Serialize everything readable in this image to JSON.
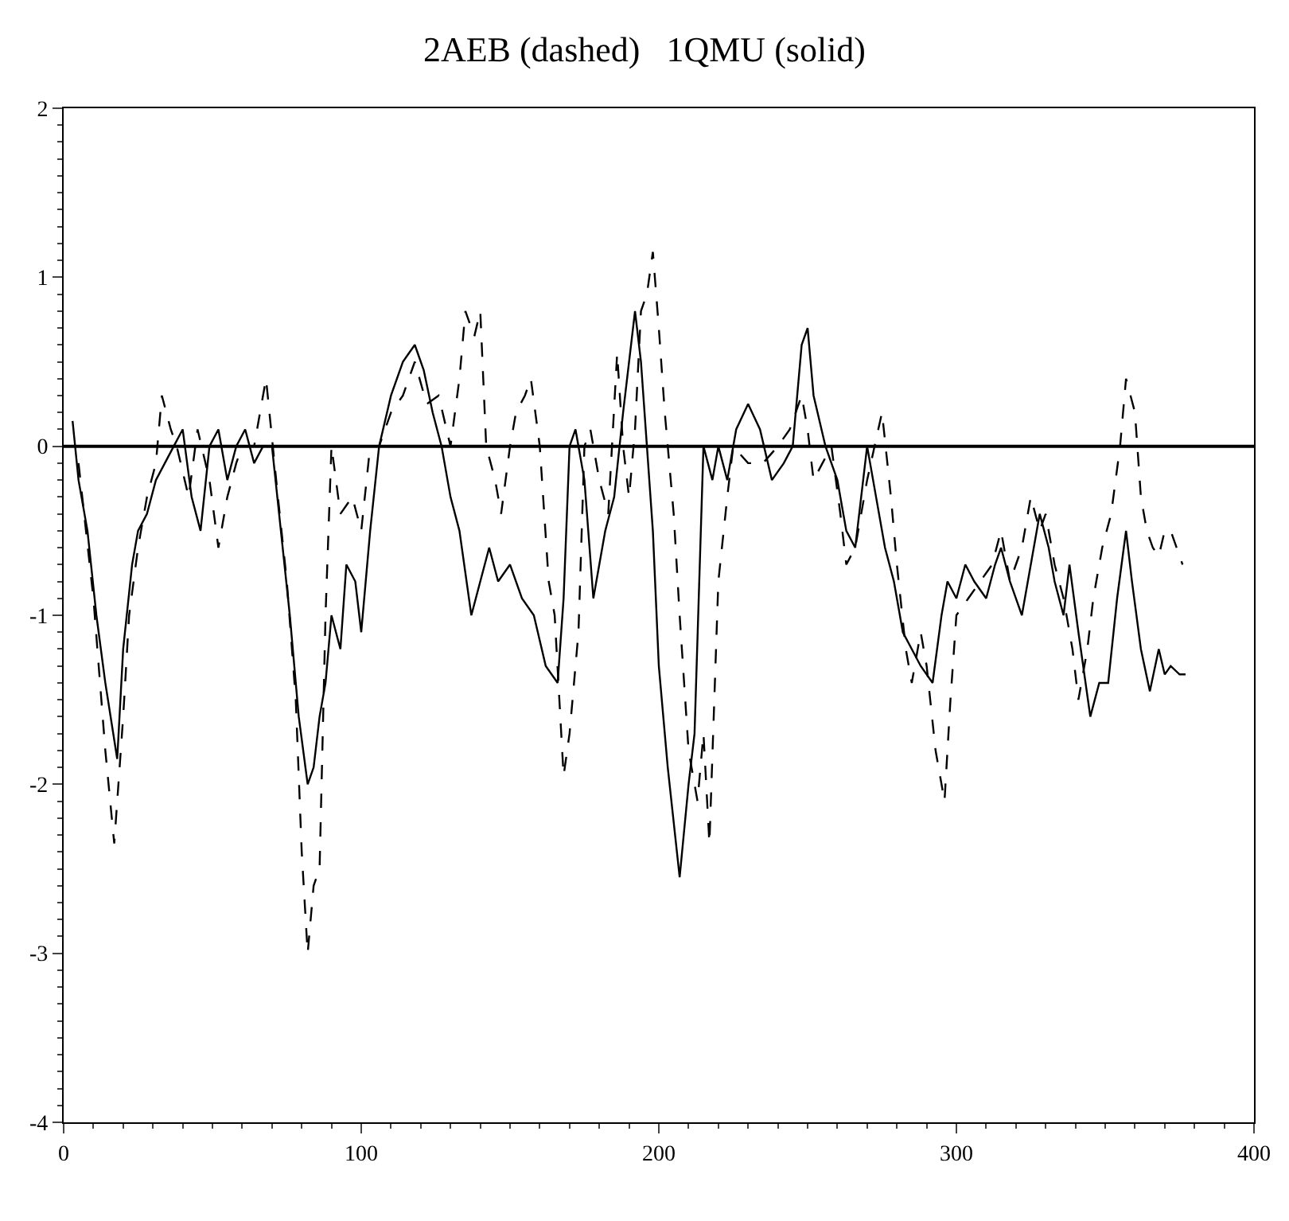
{
  "chart_data": {
    "type": "line",
    "title": "2AEB (dashed)   1QMU (solid)",
    "xlim": [
      0,
      400
    ],
    "xticks": [
      0,
      100,
      200,
      300,
      400
    ],
    "ylim": [
      -4,
      2
    ],
    "yticks": [
      -4,
      -3,
      -2,
      -1,
      0,
      1,
      2
    ],
    "grid": false,
    "marker": "none",
    "ref_lines": [
      {
        "axis": "y",
        "value": 0,
        "color": "#000000"
      }
    ],
    "series": [
      {
        "color": "#000000",
        "line_style": "dashed",
        "x": [
          5,
          10,
          14,
          17,
          20,
          22,
          25,
          28,
          31,
          33,
          36,
          38,
          42,
          45,
          49,
          52,
          55,
          58,
          60,
          64,
          68,
          72,
          75,
          78,
          80,
          82,
          84,
          86,
          88,
          90,
          93,
          97,
          100,
          103,
          106,
          110,
          114,
          118,
          122,
          126,
          130,
          133,
          135,
          138,
          140,
          142,
          145,
          147,
          150,
          152,
          155,
          157,
          160,
          163,
          165,
          168,
          170,
          173,
          175,
          177,
          180,
          183,
          186,
          188,
          190,
          192,
          194,
          196,
          198,
          200,
          202,
          205,
          207,
          210,
          213,
          215,
          217,
          220,
          223,
          225,
          230,
          235,
          240,
          244,
          248,
          250,
          252,
          255,
          258,
          261,
          263,
          266,
          270,
          275,
          278,
          280,
          283,
          285,
          288,
          290,
          293,
          296,
          298,
          300,
          304,
          308,
          312,
          315,
          318,
          322,
          325,
          328,
          330,
          333,
          336,
          339,
          341,
          344,
          346,
          349,
          352,
          355,
          357,
          360,
          362,
          364,
          366,
          368,
          370,
          372,
          374,
          376
        ],
        "values": [
          -0.1,
          -0.9,
          -1.8,
          -2.35,
          -1.6,
          -1.0,
          -0.6,
          -0.3,
          -0.1,
          0.3,
          0.1,
          0.0,
          -0.3,
          0.1,
          -0.2,
          -0.6,
          -0.3,
          -0.1,
          0.0,
          0.0,
          0.4,
          -0.3,
          -0.8,
          -1.5,
          -2.4,
          -3.0,
          -2.6,
          -2.5,
          -1.0,
          0.0,
          -0.4,
          -0.3,
          -0.5,
          0.0,
          0.0,
          0.2,
          0.3,
          0.5,
          0.25,
          0.3,
          0.0,
          0.4,
          0.8,
          0.65,
          0.8,
          0.0,
          -0.2,
          -0.4,
          0.0,
          0.2,
          0.3,
          0.4,
          0.0,
          -0.8,
          -1.0,
          -1.95,
          -1.7,
          -1.1,
          0.0,
          0.1,
          -0.2,
          -0.4,
          0.55,
          0.0,
          -0.3,
          0.1,
          0.8,
          0.9,
          1.15,
          0.7,
          0.2,
          -0.4,
          -1.0,
          -1.8,
          -2.1,
          -1.7,
          -2.35,
          -0.8,
          -0.3,
          0.0,
          -0.1,
          -0.1,
          0.0,
          0.1,
          0.3,
          0.1,
          -0.2,
          -0.1,
          0.0,
          -0.4,
          -0.7,
          -0.6,
          -0.2,
          0.2,
          -0.3,
          -0.7,
          -1.2,
          -1.4,
          -1.1,
          -1.3,
          -1.8,
          -2.1,
          -1.5,
          -1.0,
          -0.9,
          -0.8,
          -0.7,
          -0.5,
          -0.8,
          -0.6,
          -0.3,
          -0.5,
          -0.4,
          -0.7,
          -0.9,
          -1.2,
          -1.5,
          -1.2,
          -0.9,
          -0.6,
          -0.4,
          0.0,
          0.4,
          0.2,
          -0.3,
          -0.5,
          -0.6,
          -0.65,
          -0.5,
          -0.5,
          -0.6,
          -0.7
        ]
      },
      {
        "color": "#000000",
        "line_style": "solid",
        "x": [
          3,
          5,
          8,
          11,
          14,
          18,
          20,
          23,
          25,
          28,
          31,
          34,
          37,
          40,
          43,
          46,
          49,
          52,
          55,
          58,
          61,
          64,
          67,
          70,
          73,
          76,
          79,
          82,
          84,
          86,
          88,
          90,
          93,
          95,
          98,
          100,
          103,
          106,
          110,
          114,
          118,
          121,
          124,
          127,
          130,
          133,
          137,
          140,
          143,
          146,
          150,
          154,
          158,
          162,
          166,
          168,
          170,
          172,
          175,
          178,
          182,
          185,
          188,
          192,
          194,
          196,
          198,
          200,
          203,
          207,
          210,
          212,
          215,
          218,
          220,
          223,
          226,
          230,
          234,
          238,
          242,
          245,
          248,
          250,
          252,
          256,
          260,
          263,
          266,
          270,
          273,
          276,
          279,
          282,
          285,
          288,
          292,
          295,
          297,
          300,
          303,
          306,
          310,
          313,
          315,
          318,
          322,
          325,
          328,
          331,
          333,
          336,
          338,
          341,
          345,
          348,
          351,
          354,
          357,
          359,
          362,
          365,
          368,
          370,
          372,
          375,
          377
        ],
        "values": [
          0.15,
          -0.2,
          -0.5,
          -1.0,
          -1.4,
          -1.85,
          -1.2,
          -0.7,
          -0.5,
          -0.4,
          -0.2,
          -0.1,
          0.0,
          0.1,
          -0.3,
          -0.5,
          0.0,
          0.1,
          -0.2,
          0.0,
          0.1,
          -0.1,
          0.0,
          0.0,
          -0.5,
          -1.0,
          -1.6,
          -2.0,
          -1.9,
          -1.6,
          -1.4,
          -1.0,
          -1.2,
          -0.7,
          -0.8,
          -1.1,
          -0.5,
          0.0,
          0.3,
          0.5,
          0.6,
          0.45,
          0.2,
          0.0,
          -0.3,
          -0.5,
          -1.0,
          -0.8,
          -0.6,
          -0.8,
          -0.7,
          -0.9,
          -1.0,
          -1.3,
          -1.4,
          -0.9,
          0.0,
          0.1,
          -0.2,
          -0.9,
          -0.5,
          -0.3,
          0.2,
          0.8,
          0.5,
          0.0,
          -0.5,
          -1.3,
          -1.9,
          -2.55,
          -2.0,
          -1.7,
          0.0,
          -0.2,
          0.0,
          -0.2,
          0.1,
          0.25,
          0.1,
          -0.2,
          -0.1,
          0.0,
          0.6,
          0.7,
          0.3,
          0.0,
          -0.2,
          -0.5,
          -0.6,
          0.0,
          -0.3,
          -0.6,
          -0.8,
          -1.1,
          -1.2,
          -1.3,
          -1.4,
          -1.0,
          -0.8,
          -0.9,
          -0.7,
          -0.8,
          -0.9,
          -0.7,
          -0.6,
          -0.8,
          -1.0,
          -0.7,
          -0.4,
          -0.6,
          -0.8,
          -1.0,
          -0.7,
          -1.1,
          -1.6,
          -1.4,
          -1.4,
          -0.9,
          -0.5,
          -0.8,
          -1.2,
          -1.45,
          -1.2,
          -1.35,
          -1.3,
          -1.35,
          -1.35
        ]
      }
    ]
  }
}
